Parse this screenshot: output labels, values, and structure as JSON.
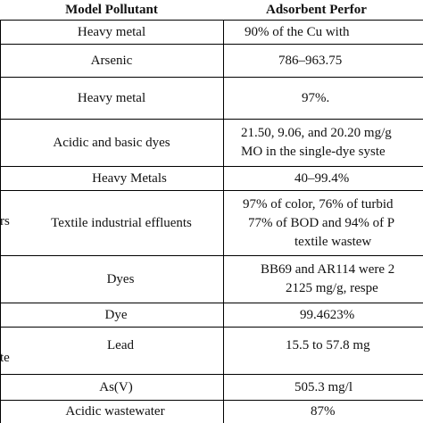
{
  "header": {
    "col1": "Model Pollutant",
    "col2": "Adsorbent Perfor"
  },
  "rows": [
    {
      "pollutant": [
        "Heavy metal"
      ],
      "performance": [
        "90% of the Cu with"
      ]
    },
    {
      "pollutant": [
        "Arsenic"
      ],
      "performance": [
        "786–963.75"
      ]
    },
    {
      "pollutant": [
        "Heavy metal"
      ],
      "performance": [
        "97%."
      ]
    },
    {
      "pollutant": [
        "Acidic and basic dyes"
      ],
      "performance": [
        "21.50, 9.06, and 20.20 mg/g",
        "MO in the single-dye syste"
      ]
    },
    {
      "pollutant": [
        "Heavy Metals"
      ],
      "performance": [
        "40–99.4%"
      ]
    },
    {
      "pollutant": [
        "Textile industrial effluents"
      ],
      "performance": [
        "97% of color, 76% of turbid",
        "77% of BOD and 94% of P",
        "textile wastew"
      ]
    },
    {
      "pollutant": [
        "Dyes"
      ],
      "performance": [
        "BB69 and AR114 were 2",
        "2125 mg/g, respe"
      ]
    },
    {
      "pollutant": [
        "Dye"
      ],
      "performance": [
        "99.4623%"
      ]
    },
    {
      "pollutant": [
        "Lead"
      ],
      "performance": [
        "15.5 to 57.8 mg"
      ]
    },
    {
      "pollutant": [
        "As(V)"
      ],
      "performance": [
        "505.3 mg/l"
      ]
    },
    {
      "pollutant": [
        "Acidic wastewater"
      ],
      "performance": [
        "87%"
      ]
    }
  ],
  "left_fragments": {
    "textile": "rs",
    "lead": "te"
  }
}
